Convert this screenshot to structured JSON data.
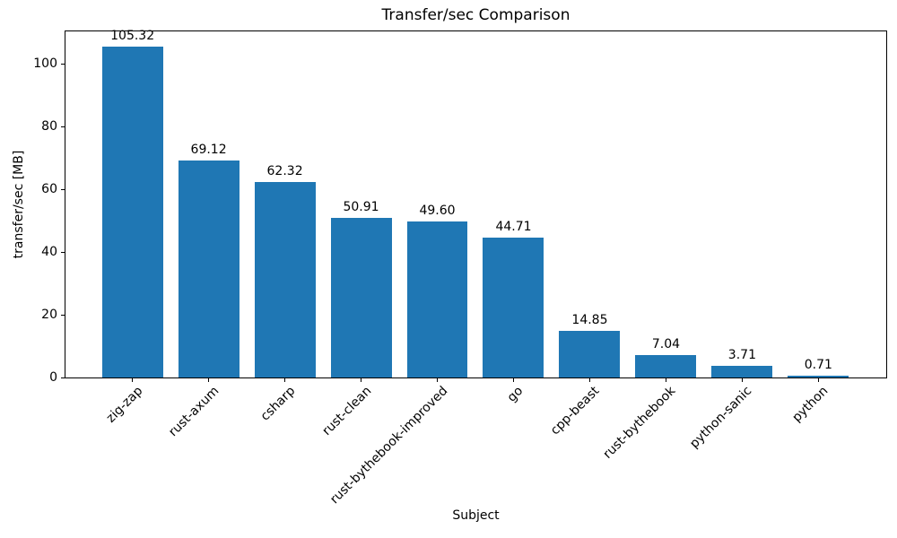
{
  "chart_data": {
    "type": "bar",
    "title": "Transfer/sec Comparison",
    "xlabel": "Subject",
    "ylabel": "transfer/sec [MB]",
    "categories": [
      "zig-zap",
      "rust-axum",
      "csharp",
      "rust-clean",
      "rust-bythebook-improved",
      "go",
      "cpp-beast",
      "rust-bythebook",
      "python-sanic",
      "python"
    ],
    "values": [
      105.32,
      69.12,
      62.32,
      50.91,
      49.6,
      44.71,
      14.85,
      7.04,
      3.71,
      0.71
    ],
    "value_labels": [
      "105.32",
      "69.12",
      "62.32",
      "50.91",
      "49.60",
      "44.71",
      "14.85",
      "7.04",
      "3.71",
      "0.71"
    ],
    "yticks": [
      0,
      20,
      40,
      60,
      80,
      100
    ],
    "ytick_labels": [
      "0",
      "20",
      "40",
      "60",
      "80",
      "100"
    ],
    "ylim": [
      0,
      110.6
    ],
    "bar_color": "#1f77b4",
    "background_color": "#ffffff",
    "text_color": "#000000",
    "grid": false,
    "legend": "none",
    "bar_width_fraction": 0.8,
    "tick_label_rotation_deg": 45
  }
}
